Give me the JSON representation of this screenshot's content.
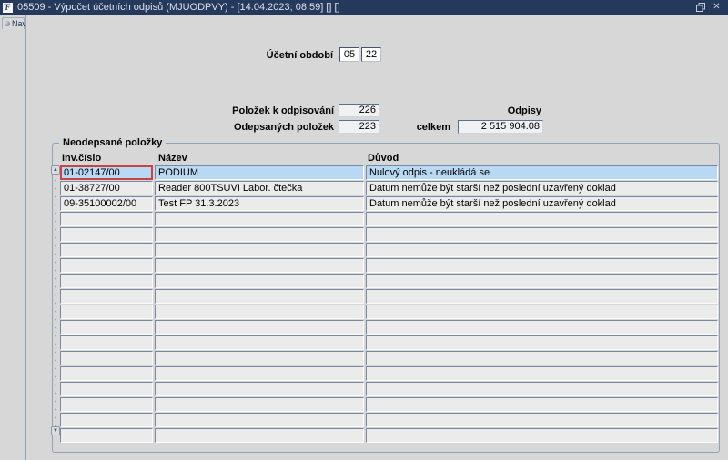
{
  "window": {
    "title": "05509 - Výpočet účetních odpisů (MJUODPVY) - [14.04.2023; 08:59] [] []",
    "app_icon_label": "F"
  },
  "icons": {
    "close_glyph": "✕",
    "scroll_up_glyph": "▲",
    "scroll_down_glyph": "▼"
  },
  "sidebar": {
    "nav_tab_label": "Nav"
  },
  "period": {
    "label": "Účetní období",
    "month": "05",
    "year": "22"
  },
  "summary": {
    "items_label": "Položek k odpisování",
    "items_value": "226",
    "written_label": "Odepsaných položek",
    "written_value": "223",
    "depreciation_label": "Odpisy",
    "total_label": "celkem",
    "total_value": "2 515 904.08"
  },
  "group": {
    "title": "Neodepsané položky",
    "columns": [
      "Inv.číslo",
      "Název",
      "Důvod"
    ],
    "rows": [
      {
        "inv": "01-02147/00",
        "name": "PODIUM",
        "reason": "Nulový odpis - neukládá se",
        "selected": true
      },
      {
        "inv": "01-38727/00",
        "name": "Reader 800TSUVI Labor. čtečka",
        "reason": "Datum nemůže být starší než poslední uzavřený doklad"
      },
      {
        "inv": "09-35100002/00",
        "name": "Test FP 31.3.2023",
        "reason": "Datum nemůže být starší než poslední uzavřený doklad"
      }
    ],
    "empty_row_count": 15
  },
  "colors": {
    "titlebar": "#24395c",
    "background": "#d7d7d7",
    "cell_background": "#ebebeb",
    "selected_row": "#b9d8f4",
    "selected_cell_border": "#cb4242"
  }
}
